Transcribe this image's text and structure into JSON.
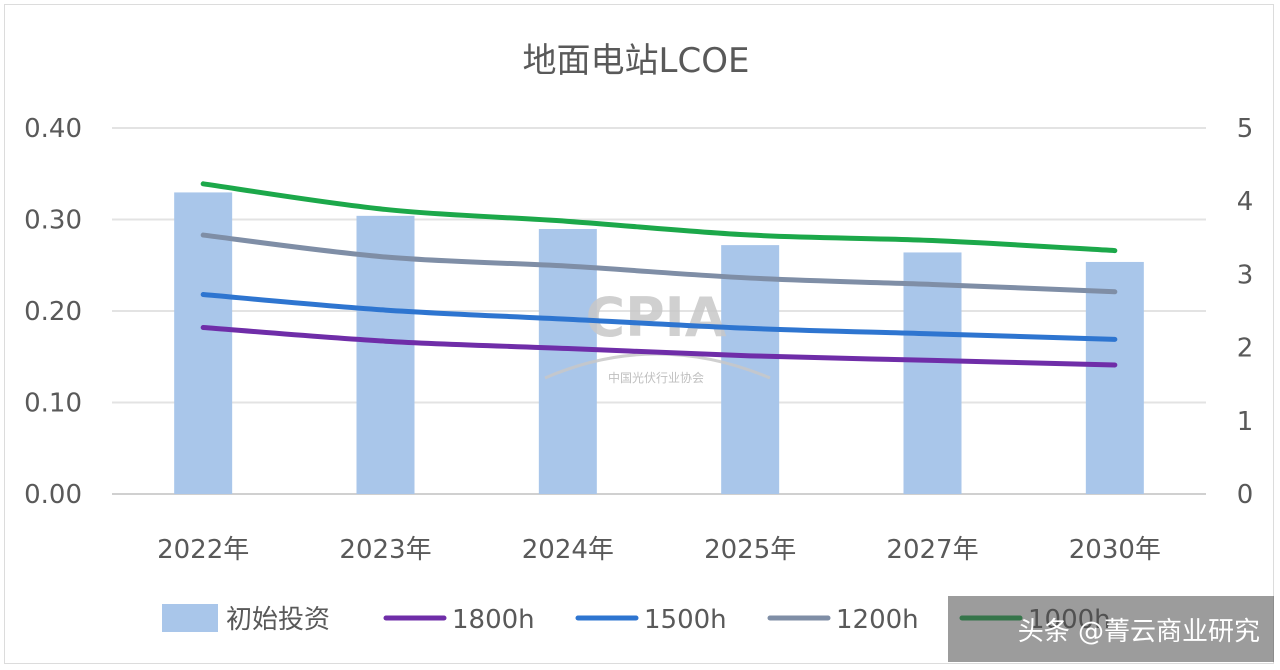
{
  "chart_data": {
    "type": "bar",
    "title": "地面电站LCOE",
    "categories": [
      "2022年",
      "2023年",
      "2024年",
      "2025年",
      "2027年",
      "2030年"
    ],
    "y_left": {
      "ticks": [
        "0.00",
        "0.10",
        "0.20",
        "0.30",
        "0.40"
      ],
      "range": [
        0,
        0.4
      ]
    },
    "y_right": {
      "ticks": [
        "0",
        "1",
        "2",
        "3",
        "4",
        "5"
      ],
      "range": [
        0,
        5
      ]
    },
    "bars": {
      "name": "初始投资",
      "axis": "right",
      "color": "#a9c6ea",
      "values": [
        4.12,
        3.8,
        3.62,
        3.4,
        3.3,
        3.17
      ]
    },
    "series": [
      {
        "name": "1800h",
        "axis": "left",
        "color": "#6f2da8",
        "values": [
          0.182,
          0.167,
          0.159,
          0.151,
          0.146,
          0.141
        ]
      },
      {
        "name": "1500h",
        "axis": "left",
        "color": "#2e75d0",
        "values": [
          0.218,
          0.201,
          0.191,
          0.181,
          0.175,
          0.169
        ]
      },
      {
        "name": "1200h",
        "axis": "left",
        "color": "#7f8ea6",
        "values": [
          0.283,
          0.259,
          0.249,
          0.236,
          0.229,
          0.221
        ]
      },
      {
        "name": "1000h",
        "axis": "left",
        "color": "#1ca84a",
        "values": [
          0.339,
          0.311,
          0.298,
          0.283,
          0.277,
          0.266
        ]
      }
    ],
    "grid": true,
    "legend": "bottom"
  },
  "watermark": {
    "text": "CPIA",
    "subtitle": "中国光伏行业协会"
  },
  "credit": "头条 @菁云商业研究"
}
